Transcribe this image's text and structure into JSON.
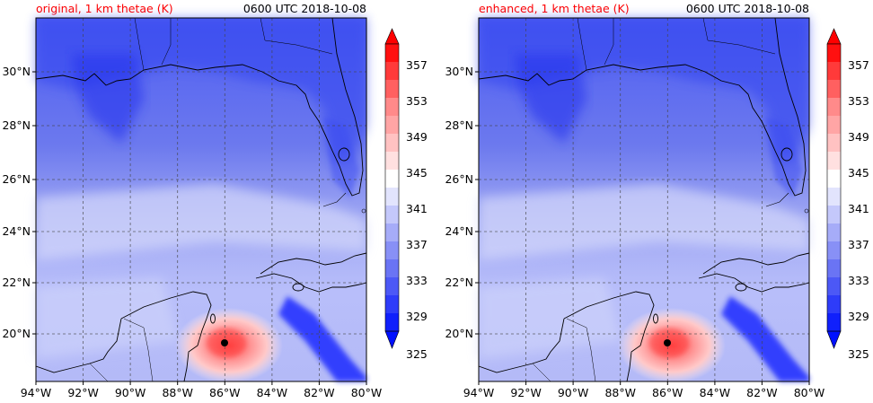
{
  "panels": [
    {
      "title_left": "original, 1 km thetae (K)",
      "title_right": "0600 UTC 2018-10-08",
      "lon_ticks": [
        "94°W",
        "92°W",
        "90°W",
        "88°W",
        "86°W",
        "84°W",
        "82°W",
        "80°W"
      ],
      "lat_ticks": [
        "30°N",
        "28°N",
        "26°N",
        "24°N",
        "22°N",
        "20°N"
      ],
      "colorbar_ticks": [
        "357",
        "353",
        "349",
        "345",
        "341",
        "337",
        "333",
        "329",
        "325"
      ]
    },
    {
      "title_left": "enhanced, 1 km thetae (K)",
      "title_right": "0600 UTC 2018-10-08",
      "lon_ticks": [
        "94°W",
        "92°W",
        "90°W",
        "88°W",
        "86°W",
        "84°W",
        "82°W",
        "80°W"
      ],
      "lat_ticks": [
        "30°N",
        "28°N",
        "26°N",
        "24°N",
        "22°N",
        "20°N"
      ],
      "colorbar_ticks": [
        "357",
        "353",
        "349",
        "345",
        "341",
        "337",
        "333",
        "329",
        "325"
      ]
    }
  ],
  "colors": {
    "title_left": "#ff0000",
    "title_right": "#000000",
    "cold": "#2a3cff",
    "neutral": "#ffffff",
    "warm": "#ff2020",
    "coastline": "#000000",
    "storm_center": "#000000"
  }
}
